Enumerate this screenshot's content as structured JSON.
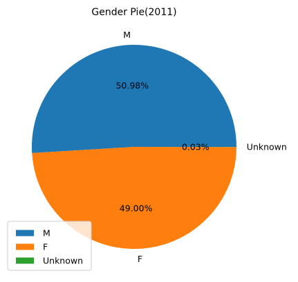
{
  "chart_data": {
    "type": "pie",
    "title": "Gender Pie(2011)",
    "categories": [
      "M",
      "F",
      "Unknown"
    ],
    "values": [
      50.98,
      49.0,
      0.03
    ],
    "value_labels": [
      "50.98%",
      "49.00%",
      "0.03%"
    ],
    "colors": [
      "#1f77b4",
      "#ff7f0e",
      "#2ca02c"
    ],
    "legend": {
      "placement": "lower-left",
      "entries": [
        "M",
        "F",
        "Unknown"
      ]
    }
  }
}
